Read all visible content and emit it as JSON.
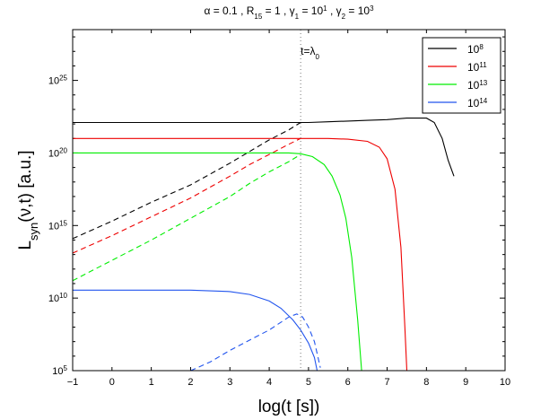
{
  "chart_data": {
    "type": "line",
    "title": {
      "parts": [
        {
          "t": "α = 0.1 , R"
        },
        {
          "t": "15",
          "sub": true
        },
        {
          "t": " = 1 , γ"
        },
        {
          "t": "1",
          "sub": true
        },
        {
          "t": " = 10"
        },
        {
          "t": "1",
          "sup": true
        },
        {
          "t": " , γ"
        },
        {
          "t": "2",
          "sub": true
        },
        {
          "t": " = 10"
        },
        {
          "t": "3",
          "sup": true
        }
      ]
    },
    "xlabel": "log(t [s])",
    "ylabel": {
      "parts": [
        {
          "t": "L"
        },
        {
          "t": "syn",
          "sub": true
        },
        {
          "t": "(ν,t) [a.u.]"
        }
      ]
    },
    "xlim": [
      -1,
      10
    ],
    "ylim": [
      5,
      28.5
    ],
    "y_scale": "log10",
    "x_ticks": [
      "−1",
      "0",
      "1",
      "2",
      "3",
      "4",
      "5",
      "6",
      "7",
      "8",
      "9",
      "10"
    ],
    "y_ticks": [
      {
        "exp": 5,
        "base": "10",
        "power": "5"
      },
      {
        "exp": 10,
        "base": "10",
        "power": "10"
      },
      {
        "exp": 15,
        "base": "10",
        "power": "15"
      },
      {
        "exp": 20,
        "base": "10",
        "power": "20"
      },
      {
        "exp": 25,
        "base": "10",
        "power": "25"
      }
    ],
    "legend_position": "top-right",
    "annotation": {
      "x": 4.8,
      "parts": [
        {
          "t": "t=λ"
        },
        {
          "t": "0",
          "sub": true
        }
      ]
    },
    "series": [
      {
        "name": "10^8",
        "legend_base": "10",
        "legend_power": "8",
        "color": "#000000",
        "solid": [
          [
            -1,
            22.1
          ],
          [
            4.8,
            22.1
          ],
          [
            5.0,
            22.1
          ],
          [
            5.5,
            22.15
          ],
          [
            6.0,
            22.2
          ],
          [
            6.5,
            22.25
          ],
          [
            7.0,
            22.3
          ],
          [
            7.5,
            22.4
          ],
          [
            8.0,
            22.4
          ],
          [
            8.2,
            22.1
          ],
          [
            8.4,
            21.0
          ],
          [
            8.55,
            19.5
          ],
          [
            8.7,
            18.4
          ]
        ],
        "dashed": [
          [
            -1,
            14.1
          ],
          [
            0,
            15.3
          ],
          [
            1,
            16.6
          ],
          [
            2,
            17.8
          ],
          [
            3,
            19.3
          ],
          [
            3.5,
            20.1
          ],
          [
            4.0,
            20.9
          ],
          [
            4.5,
            21.6
          ],
          [
            4.8,
            22.1
          ]
        ]
      },
      {
        "name": "10^11",
        "legend_base": "10",
        "legend_power": "11",
        "color": "#ee0000",
        "solid": [
          [
            -1,
            21.0
          ],
          [
            4.8,
            21.0
          ],
          [
            5.5,
            21.0
          ],
          [
            6.0,
            20.95
          ],
          [
            6.5,
            20.8
          ],
          [
            6.8,
            20.4
          ],
          [
            7.0,
            19.6
          ],
          [
            7.2,
            17.5
          ],
          [
            7.35,
            13.5
          ],
          [
            7.45,
            8.0
          ],
          [
            7.5,
            5.0
          ]
        ],
        "dashed": [
          [
            -1,
            13.1
          ],
          [
            0,
            14.3
          ],
          [
            1,
            15.6
          ],
          [
            2,
            16.9
          ],
          [
            3,
            18.4
          ],
          [
            3.5,
            19.2
          ],
          [
            4.0,
            19.9
          ],
          [
            4.5,
            20.6
          ],
          [
            4.8,
            21.0
          ]
        ]
      },
      {
        "name": "10^13",
        "legend_base": "10",
        "legend_power": "13",
        "color": "#00ee00",
        "solid": [
          [
            -1,
            20.0
          ],
          [
            3.0,
            20.0
          ],
          [
            4.0,
            20.0
          ],
          [
            4.5,
            20.0
          ],
          [
            4.8,
            19.95
          ],
          [
            5.1,
            19.75
          ],
          [
            5.4,
            19.2
          ],
          [
            5.6,
            18.4
          ],
          [
            5.8,
            17.1
          ],
          [
            5.95,
            15.5
          ],
          [
            6.1,
            12.8
          ],
          [
            6.25,
            8.5
          ],
          [
            6.35,
            5.0
          ]
        ],
        "dashed": [
          [
            -1,
            11.2
          ],
          [
            0,
            12.6
          ],
          [
            1,
            14.0
          ],
          [
            2,
            15.5
          ],
          [
            3,
            17.0
          ],
          [
            3.5,
            17.9
          ],
          [
            4.0,
            18.7
          ],
          [
            4.5,
            19.4
          ],
          [
            4.8,
            19.9
          ]
        ]
      },
      {
        "name": "10^14",
        "legend_base": "10",
        "legend_power": "14",
        "color": "#2255ee",
        "solid": [
          [
            -1,
            10.55
          ],
          [
            2.0,
            10.55
          ],
          [
            3.0,
            10.45
          ],
          [
            3.5,
            10.25
          ],
          [
            4.0,
            9.8
          ],
          [
            4.3,
            9.3
          ],
          [
            4.6,
            8.5
          ],
          [
            4.8,
            7.8
          ],
          [
            5.0,
            6.9
          ],
          [
            5.15,
            5.9
          ],
          [
            5.22,
            5.0
          ]
        ],
        "dashed": [
          [
            2.0,
            5.0
          ],
          [
            2.5,
            5.6
          ],
          [
            3.0,
            6.4
          ],
          [
            3.5,
            7.1
          ],
          [
            4.0,
            7.8
          ],
          [
            4.5,
            8.7
          ],
          [
            4.7,
            8.9
          ],
          [
            4.85,
            8.7
          ],
          [
            5.0,
            8.0
          ],
          [
            5.15,
            7.0
          ],
          [
            5.3,
            5.2
          ]
        ]
      }
    ]
  }
}
